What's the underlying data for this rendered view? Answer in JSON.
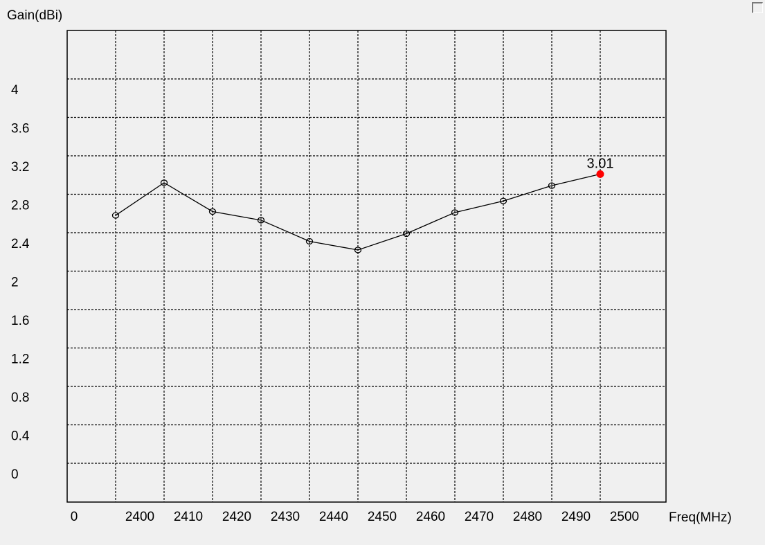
{
  "chart_data": {
    "type": "line",
    "ylabel": "Gain(dBi)",
    "xlabel": "Freq(MHz)",
    "x_ticks": [
      "0",
      "2400",
      "2410",
      "2420",
      "2430",
      "2440",
      "2450",
      "2460",
      "2470",
      "2480",
      "2490",
      "2500"
    ],
    "y_ticks": [
      "4",
      "3.6",
      "3.2",
      "2.8",
      "2.4",
      "2",
      "1.6",
      "1.2",
      "0.8",
      "0.4",
      "0"
    ],
    "grid": true,
    "series": [
      {
        "x": [
          2400,
          2410,
          2420,
          2430,
          2440,
          2450,
          2460,
          2470,
          2480,
          2490,
          2500
        ],
        "values": [
          2.58,
          2.92,
          2.62,
          2.53,
          2.31,
          2.22,
          2.39,
          2.61,
          2.73,
          2.89,
          3.01
        ],
        "color": "#000000"
      }
    ],
    "highlight": {
      "x": 2500,
      "value": 3.01,
      "label": "3.01",
      "color": "#ff0000"
    }
  }
}
